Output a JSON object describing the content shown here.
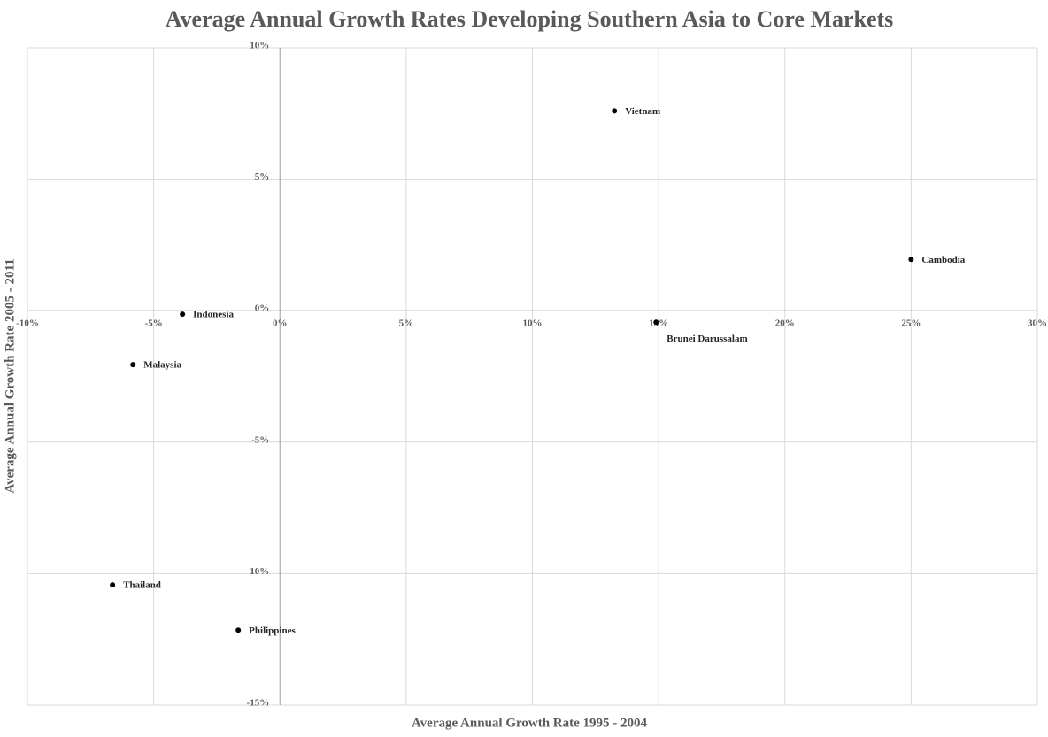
{
  "chart_data": {
    "type": "scatter",
    "title": "Average Annual Growth Rates Developing Southern Asia to Core Markets",
    "xlabel": "Average Annual Growth Rate 1995 - 2004",
    "ylabel": "Average Annual Growth Rate 2005 - 2011",
    "point_labels": [
      "Vietnam",
      "Cambodia",
      "Brunei Darussalam",
      "Indonesia",
      "Malaysia",
      "Thailand",
      "Philippines"
    ],
    "x": [
      13.25,
      25.0,
      14.9,
      -3.86,
      -5.82,
      -6.63,
      -1.65
    ],
    "y": [
      7.6,
      1.95,
      -0.44,
      -0.13,
      -2.05,
      -10.43,
      -12.15
    ],
    "color": "#000000",
    "xlim": [
      -10,
      30
    ],
    "ylim": [
      -15,
      10
    ],
    "xticks": [
      {
        "value": -10,
        "label": "-10%"
      },
      {
        "value": -5,
        "label": "-5%"
      },
      {
        "value": 0,
        "label": "0%"
      },
      {
        "value": 5,
        "label": "5%"
      },
      {
        "value": 10,
        "label": "10%"
      },
      {
        "value": 15,
        "label": "15%"
      },
      {
        "value": 20,
        "label": "20%"
      },
      {
        "value": 25,
        "label": "25%"
      },
      {
        "value": 30,
        "label": "30%"
      }
    ],
    "yticks": [
      {
        "value": -15,
        "label": "-15%"
      },
      {
        "value": -10,
        "label": "-10%"
      },
      {
        "value": -5,
        "label": "-5%"
      },
      {
        "value": 0,
        "label": "0%"
      },
      {
        "value": 5,
        "label": "5%"
      },
      {
        "value": 10,
        "label": "10%"
      }
    ],
    "grid": true
  }
}
